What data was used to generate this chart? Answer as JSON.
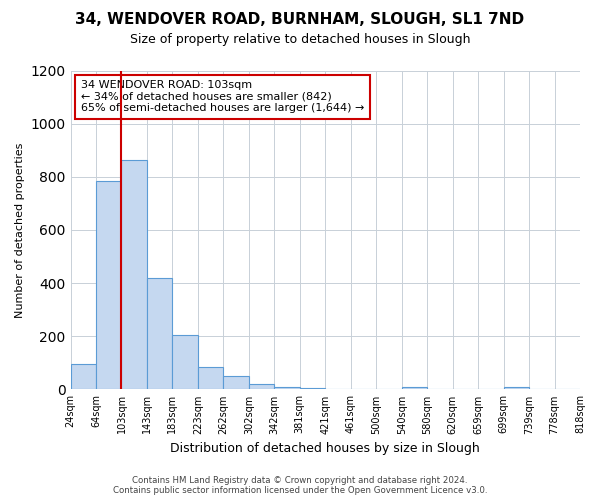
{
  "title": "34, WENDOVER ROAD, BURNHAM, SLOUGH, SL1 7ND",
  "subtitle": "Size of property relative to detached houses in Slough",
  "xlabel": "Distribution of detached houses by size in Slough",
  "ylabel": "Number of detached properties",
  "bar_values": [
    95,
    785,
    865,
    420,
    205,
    85,
    50,
    20,
    10,
    5,
    0,
    0,
    0,
    10,
    0,
    0,
    0,
    10,
    0,
    0
  ],
  "bin_labels": [
    "24sqm",
    "64sqm",
    "103sqm",
    "143sqm",
    "183sqm",
    "223sqm",
    "262sqm",
    "302sqm",
    "342sqm",
    "381sqm",
    "421sqm",
    "461sqm",
    "500sqm",
    "540sqm",
    "580sqm",
    "620sqm",
    "659sqm",
    "699sqm",
    "739sqm",
    "778sqm",
    "818sqm"
  ],
  "bar_color": "#c5d8f0",
  "bar_edge_color": "#5b9bd5",
  "reference_line_color": "#cc0000",
  "annotation_text": "34 WENDOVER ROAD: 103sqm\n← 34% of detached houses are smaller (842)\n65% of semi-detached houses are larger (1,644) →",
  "annotation_box_edgecolor": "#cc0000",
  "ylim": [
    0,
    1200
  ],
  "yticks": [
    0,
    200,
    400,
    600,
    800,
    1000,
    1200
  ],
  "footer_line1": "Contains HM Land Registry data © Crown copyright and database right 2024.",
  "footer_line2": "Contains public sector information licensed under the Open Government Licence v3.0.",
  "background_color": "#ffffff",
  "grid_color": "#c8d0d8"
}
